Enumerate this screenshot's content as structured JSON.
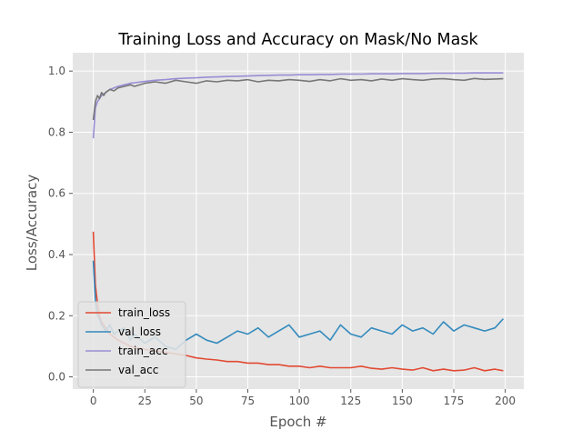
{
  "chart_data": {
    "type": "line",
    "title": "Training Loss and Accuracy on Mask/No Mask",
    "xlabel": "Epoch #",
    "ylabel": "Loss/Accuracy",
    "xlim": [
      -10,
      209
    ],
    "ylim": [
      -0.04,
      1.06
    ],
    "xticks": [
      0,
      25,
      50,
      75,
      100,
      125,
      150,
      175,
      200
    ],
    "yticks": [
      0.0,
      0.2,
      0.4,
      0.6,
      0.8,
      1.0
    ],
    "xtick_labels": [
      "0",
      "25",
      "50",
      "75",
      "100",
      "125",
      "150",
      "175",
      "200"
    ],
    "ytick_labels": [
      "0.0",
      "0.2",
      "0.4",
      "0.6",
      "0.8",
      "1.0"
    ],
    "grid": true,
    "legend_position": "lower-left",
    "style": {
      "background": "#e5e5e5",
      "grid_color": "#ffffff",
      "text_color": "#555555"
    },
    "series": [
      {
        "name": "train_loss",
        "color": "#e24a33",
        "x": [
          0,
          1,
          2,
          3,
          4,
          5,
          6,
          8,
          10,
          12,
          15,
          18,
          20,
          25,
          30,
          35,
          40,
          45,
          50,
          55,
          60,
          65,
          70,
          75,
          80,
          85,
          90,
          95,
          100,
          105,
          110,
          115,
          120,
          125,
          130,
          135,
          140,
          145,
          150,
          155,
          160,
          165,
          170,
          175,
          180,
          185,
          190,
          195,
          199
        ],
        "y": [
          0.475,
          0.3,
          0.24,
          0.2,
          0.18,
          0.17,
          0.16,
          0.14,
          0.13,
          0.12,
          0.11,
          0.1,
          0.095,
          0.09,
          0.085,
          0.08,
          0.075,
          0.07,
          0.062,
          0.058,
          0.055,
          0.05,
          0.05,
          0.045,
          0.045,
          0.04,
          0.04,
          0.035,
          0.035,
          0.03,
          0.035,
          0.03,
          0.03,
          0.03,
          0.035,
          0.028,
          0.025,
          0.03,
          0.025,
          0.022,
          0.03,
          0.02,
          0.025,
          0.02,
          0.022,
          0.03,
          0.02,
          0.025,
          0.02
        ]
      },
      {
        "name": "val_loss",
        "color": "#348abd",
        "x": [
          0,
          1,
          2,
          3,
          4,
          5,
          6,
          8,
          10,
          12,
          15,
          18,
          20,
          25,
          30,
          35,
          40,
          45,
          50,
          55,
          60,
          65,
          70,
          75,
          80,
          85,
          90,
          95,
          100,
          105,
          110,
          115,
          120,
          125,
          130,
          135,
          140,
          145,
          150,
          155,
          160,
          165,
          170,
          175,
          180,
          185,
          190,
          195,
          199
        ],
        "y": [
          0.38,
          0.25,
          0.2,
          0.19,
          0.17,
          0.16,
          0.15,
          0.17,
          0.14,
          0.15,
          0.16,
          0.12,
          0.14,
          0.11,
          0.13,
          0.1,
          0.09,
          0.12,
          0.14,
          0.12,
          0.11,
          0.13,
          0.15,
          0.14,
          0.16,
          0.13,
          0.15,
          0.17,
          0.13,
          0.14,
          0.15,
          0.12,
          0.17,
          0.14,
          0.13,
          0.16,
          0.15,
          0.14,
          0.17,
          0.15,
          0.16,
          0.14,
          0.18,
          0.15,
          0.17,
          0.16,
          0.15,
          0.16,
          0.19
        ]
      },
      {
        "name": "train_acc",
        "color": "#988ed5",
        "x": [
          0,
          1,
          2,
          3,
          4,
          5,
          6,
          8,
          10,
          12,
          15,
          18,
          20,
          25,
          30,
          35,
          40,
          45,
          50,
          55,
          60,
          65,
          70,
          75,
          80,
          85,
          90,
          95,
          100,
          105,
          110,
          115,
          120,
          125,
          130,
          135,
          140,
          145,
          150,
          155,
          160,
          165,
          170,
          175,
          180,
          185,
          190,
          195,
          199
        ],
        "y": [
          0.78,
          0.88,
          0.9,
          0.91,
          0.92,
          0.925,
          0.93,
          0.94,
          0.945,
          0.95,
          0.955,
          0.96,
          0.962,
          0.966,
          0.97,
          0.972,
          0.975,
          0.977,
          0.978,
          0.98,
          0.981,
          0.982,
          0.983,
          0.984,
          0.985,
          0.986,
          0.987,
          0.987,
          0.988,
          0.988,
          0.989,
          0.989,
          0.99,
          0.99,
          0.99,
          0.991,
          0.991,
          0.991,
          0.992,
          0.992,
          0.992,
          0.993,
          0.993,
          0.993,
          0.993,
          0.994,
          0.994,
          0.994,
          0.994
        ]
      },
      {
        "name": "val_acc",
        "color": "#777777",
        "x": [
          0,
          1,
          2,
          3,
          4,
          5,
          6,
          8,
          10,
          12,
          15,
          18,
          20,
          25,
          30,
          35,
          40,
          45,
          50,
          55,
          60,
          65,
          70,
          75,
          80,
          85,
          90,
          95,
          100,
          105,
          110,
          115,
          120,
          125,
          130,
          135,
          140,
          145,
          150,
          155,
          160,
          165,
          170,
          175,
          180,
          185,
          190,
          195,
          199
        ],
        "y": [
          0.84,
          0.9,
          0.92,
          0.91,
          0.93,
          0.92,
          0.93,
          0.94,
          0.935,
          0.945,
          0.95,
          0.955,
          0.95,
          0.96,
          0.965,
          0.96,
          0.97,
          0.965,
          0.96,
          0.968,
          0.965,
          0.97,
          0.968,
          0.972,
          0.965,
          0.97,
          0.968,
          0.972,
          0.97,
          0.966,
          0.972,
          0.968,
          0.975,
          0.97,
          0.972,
          0.968,
          0.974,
          0.97,
          0.975,
          0.972,
          0.97,
          0.974,
          0.975,
          0.972,
          0.97,
          0.976,
          0.973,
          0.974,
          0.975
        ]
      }
    ]
  }
}
